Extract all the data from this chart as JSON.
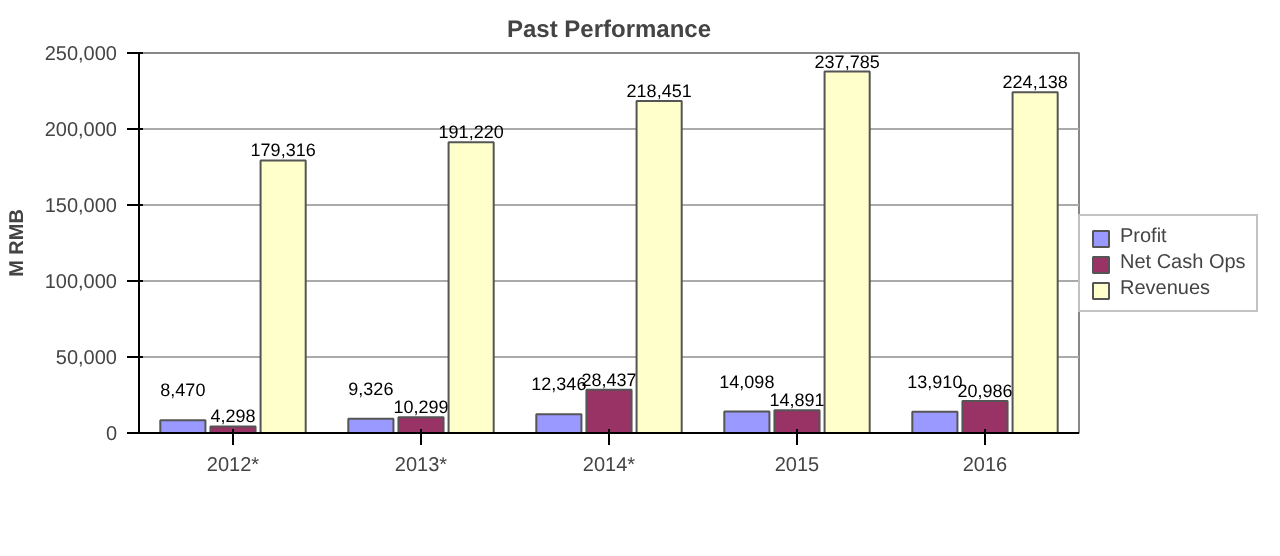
{
  "chart_data": {
    "type": "bar",
    "title": "Past Performance",
    "ylabel": "M RMB",
    "categories": [
      "2012*",
      "2013*",
      "2014*",
      "2015",
      "2016"
    ],
    "series": [
      {
        "name": "Profit",
        "color": "#9999ff",
        "values": [
          8470,
          9326,
          12346,
          14098,
          13910
        ],
        "value_labels": [
          "8,470",
          "9,326",
          "12,346",
          "14,098",
          "13,910"
        ]
      },
      {
        "name": "Net Cash Ops",
        "color": "#993366",
        "values": [
          4298,
          10299,
          28437,
          14891,
          20986
        ],
        "value_labels": [
          "4,298",
          "10,299",
          "28,437",
          "14,891",
          "20,986"
        ]
      },
      {
        "name": "Revenues",
        "color": "#ffffcc",
        "values": [
          179316,
          191220,
          218451,
          237785,
          224138
        ],
        "value_labels": [
          "179,316",
          "191,220",
          "218,451",
          "237,785",
          "224,138"
        ]
      }
    ],
    "ylim": [
      0,
      250000
    ],
    "yticks": [
      0,
      {
        "value": 50000,
        "label": "50,000"
      },
      {
        "value": 100000,
        "label": "100,000"
      },
      {
        "value": 150000,
        "label": "150,000"
      },
      {
        "value": 200000,
        "label": "200,000"
      },
      {
        "value": 250000,
        "label": "250,000"
      }
    ],
    "grid": "y",
    "legend": "right"
  }
}
